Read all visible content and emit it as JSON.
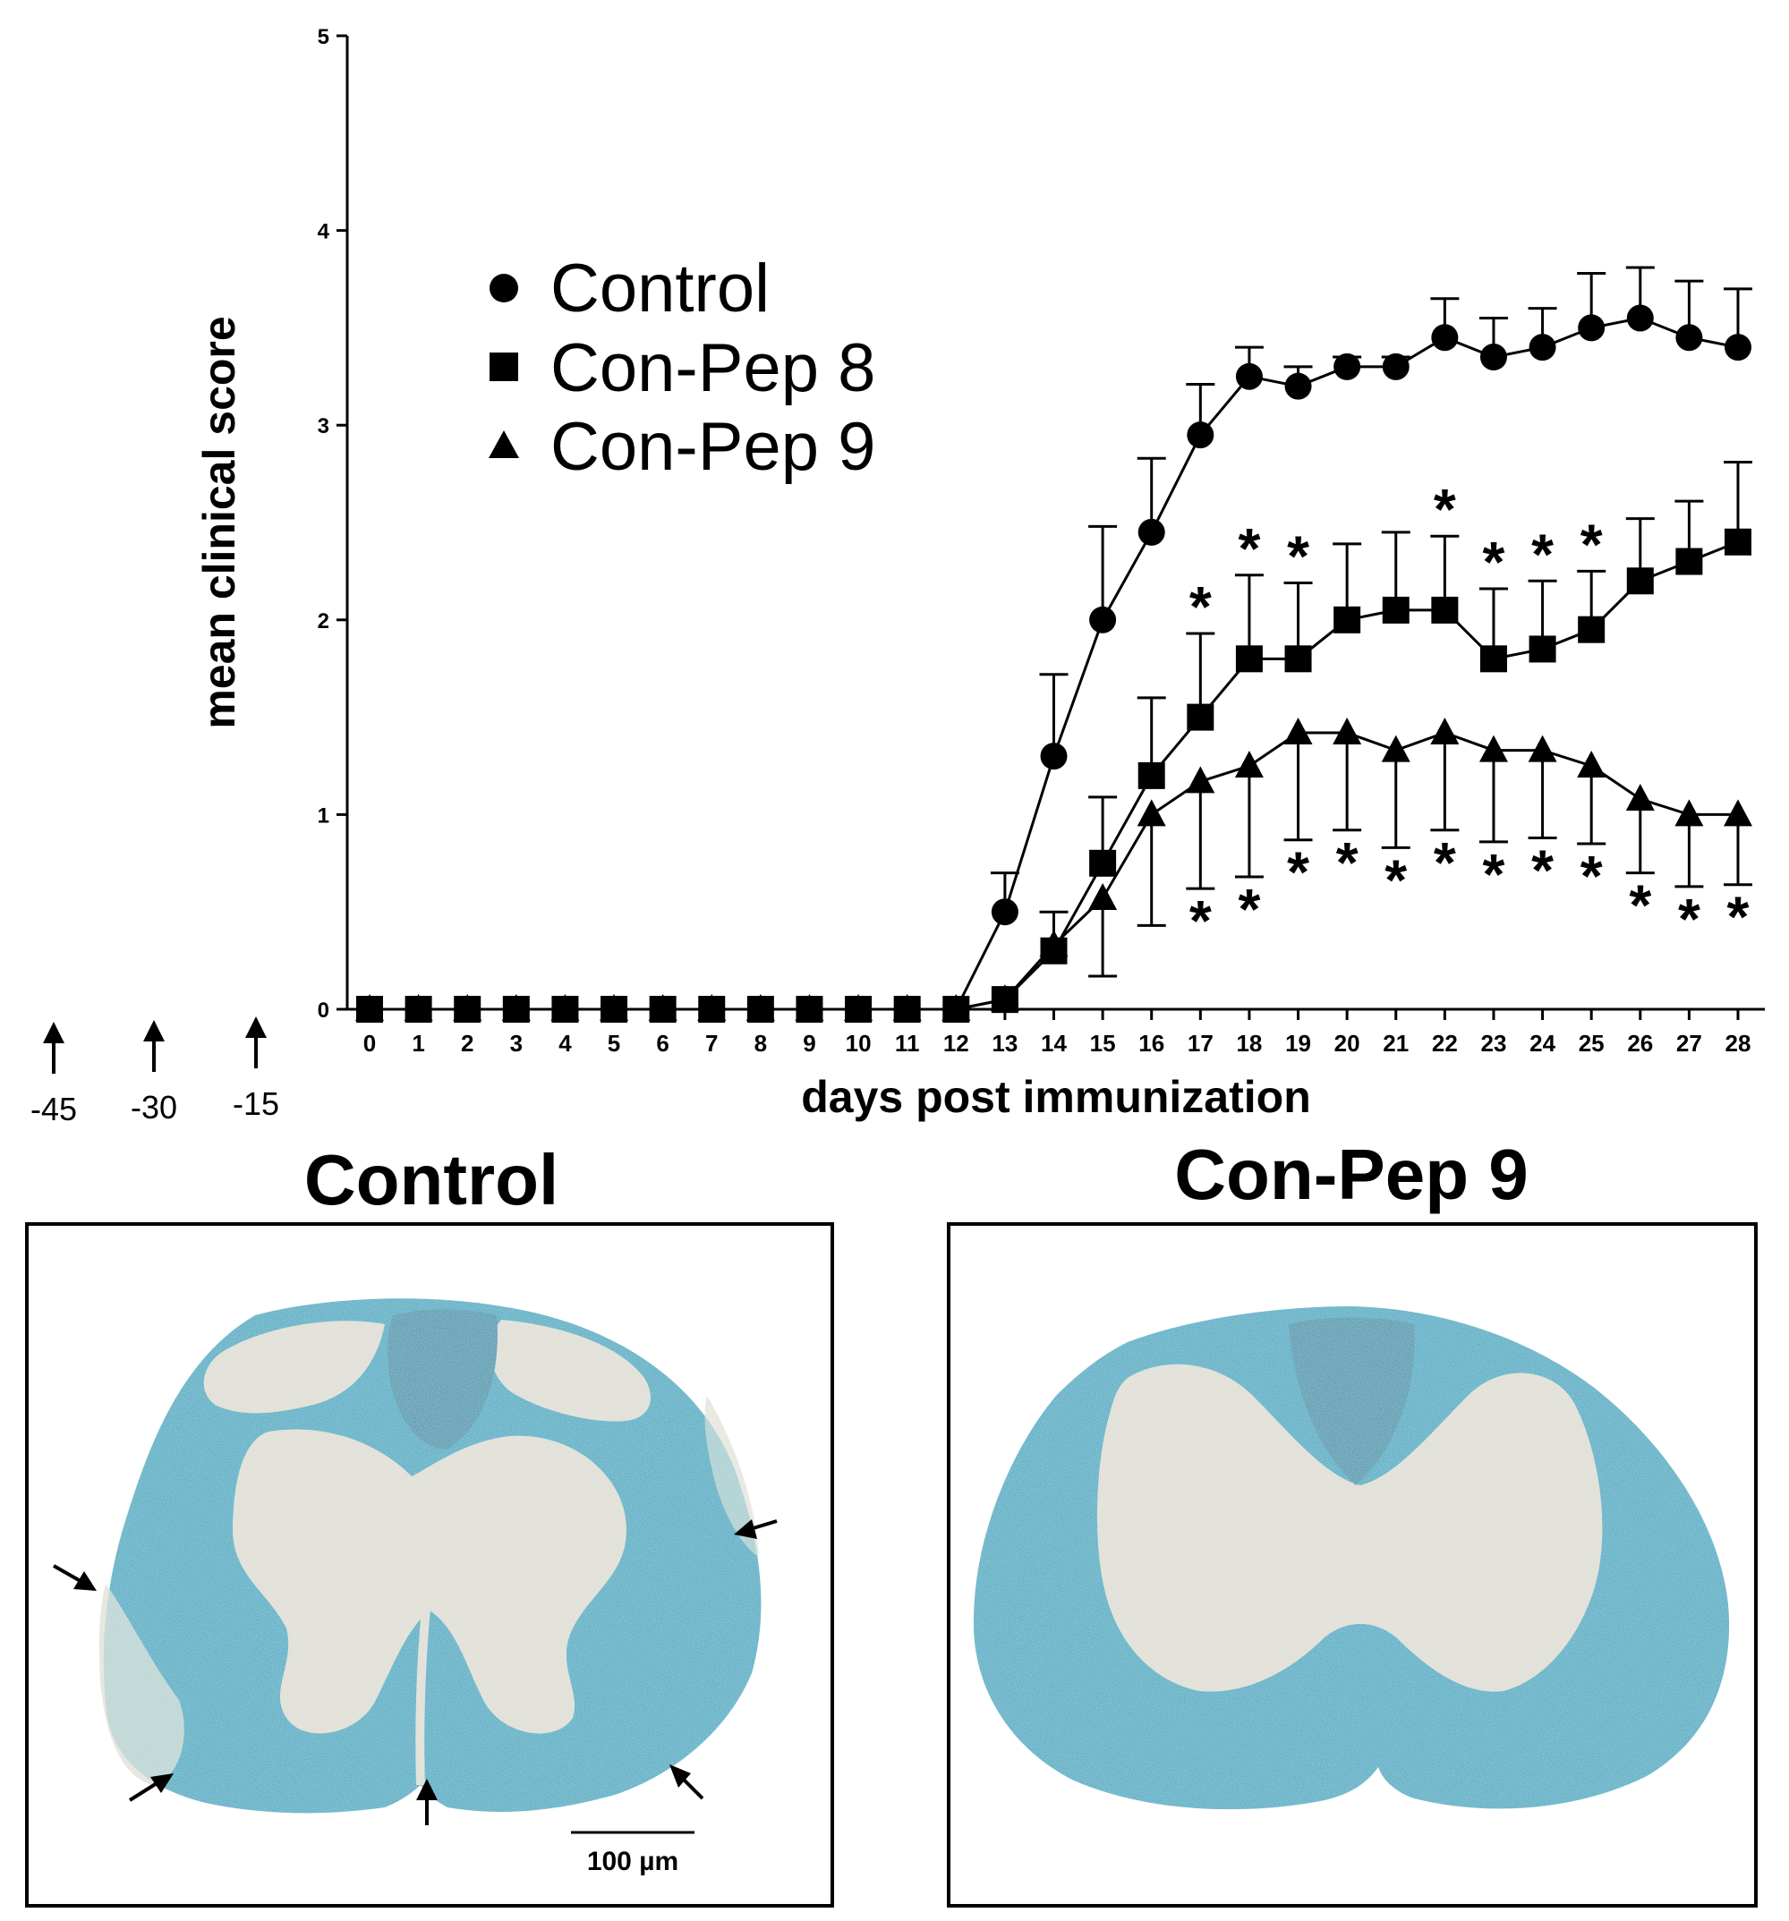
{
  "chart_data": {
    "type": "line",
    "xlabel": "days post immunization",
    "ylabel": "mean clinical score",
    "xlim": [
      0,
      28
    ],
    "ylim": [
      0,
      5
    ],
    "x": [
      0,
      1,
      2,
      3,
      4,
      5,
      6,
      7,
      8,
      9,
      10,
      11,
      12,
      13,
      14,
      15,
      16,
      17,
      18,
      19,
      20,
      21,
      22,
      23,
      24,
      25,
      26,
      27,
      28
    ],
    "xticks": [
      "0",
      "1",
      "2",
      "3",
      "4",
      "5",
      "6",
      "7",
      "8",
      "9",
      "10",
      "11",
      "12",
      "13",
      "14",
      "15",
      "16",
      "17",
      "18",
      "19",
      "20",
      "21",
      "22",
      "23",
      "24",
      "25",
      "26",
      "27",
      "28"
    ],
    "yticks": [
      "0",
      "1",
      "2",
      "3",
      "4",
      "5"
    ],
    "legend_position": "upper-left",
    "series": [
      {
        "name": "Control",
        "marker": "circle",
        "values": [
          0,
          0,
          0,
          0,
          0,
          0,
          0,
          0,
          0,
          0,
          0,
          0,
          0,
          0.5,
          1.3,
          2.0,
          2.45,
          2.95,
          3.25,
          3.2,
          3.3,
          3.3,
          3.45,
          3.35,
          3.4,
          3.5,
          3.55,
          3.45,
          3.4
        ],
        "errors": [
          0,
          0,
          0,
          0,
          0,
          0,
          0,
          0,
          0,
          0,
          0,
          0,
          0,
          0.2,
          0.42,
          0.48,
          0.38,
          0.26,
          0.15,
          0.1,
          0.05,
          0.05,
          0.2,
          0.2,
          0.2,
          0.28,
          0.26,
          0.29,
          0.3
        ],
        "error_direction": "up"
      },
      {
        "name": "Con-Pep 8",
        "marker": "square",
        "values": [
          0,
          0,
          0,
          0,
          0,
          0,
          0,
          0,
          0,
          0,
          0,
          0,
          0,
          0.05,
          0.3,
          0.75,
          1.2,
          1.5,
          1.8,
          1.8,
          2.0,
          2.05,
          2.05,
          1.8,
          1.85,
          1.95,
          2.2,
          2.3,
          2.4
        ],
        "errors": [
          0,
          0,
          0,
          0,
          0,
          0,
          0,
          0,
          0,
          0,
          0,
          0,
          0,
          0,
          0.2,
          0.34,
          0.4,
          0.43,
          0.43,
          0.39,
          0.39,
          0.4,
          0.38,
          0.36,
          0.35,
          0.3,
          0.32,
          0.31,
          0.41
        ],
        "error_direction": "up",
        "significant_days": [
          17,
          18,
          19,
          22,
          23,
          24,
          25
        ]
      },
      {
        "name": "Con-Pep 9",
        "marker": "triangle",
        "values": [
          0,
          0,
          0,
          0,
          0,
          0,
          0,
          0,
          0,
          0,
          0,
          0,
          0,
          0.05,
          0.33,
          0.57,
          1.0,
          1.17,
          1.25,
          1.42,
          1.42,
          1.33,
          1.42,
          1.33,
          1.33,
          1.25,
          1.08,
          1.0,
          1.0
        ],
        "errors": [
          0,
          0,
          0,
          0,
          0,
          0,
          0,
          0,
          0,
          0,
          0,
          0,
          0,
          0,
          0,
          0.4,
          0.57,
          0.55,
          0.57,
          0.55,
          0.5,
          0.5,
          0.5,
          0.47,
          0.45,
          0.4,
          0.38,
          0.37,
          0.36
        ],
        "error_direction": "down",
        "significant_days": [
          17,
          18,
          19,
          20,
          21,
          22,
          23,
          24,
          25,
          26,
          27,
          28
        ]
      }
    ],
    "significance_symbol": "*"
  },
  "pre_immunization": {
    "arrows": [
      {
        "label": "-45",
        "icon": "up-arrow-icon"
      },
      {
        "label": "-30",
        "icon": "up-arrow-icon"
      },
      {
        "label": "-15",
        "icon": "up-arrow-icon"
      }
    ]
  },
  "panels": {
    "left": {
      "title": "Control",
      "scalebar": "100 µm"
    },
    "right": {
      "title": "Con-Pep 9"
    }
  },
  "colors": {
    "tissue_blue": "#1aa6c0",
    "tissue_dark": "#0e8fa9",
    "tissue_pale": "#dcdcd2",
    "ink": "#000000"
  }
}
